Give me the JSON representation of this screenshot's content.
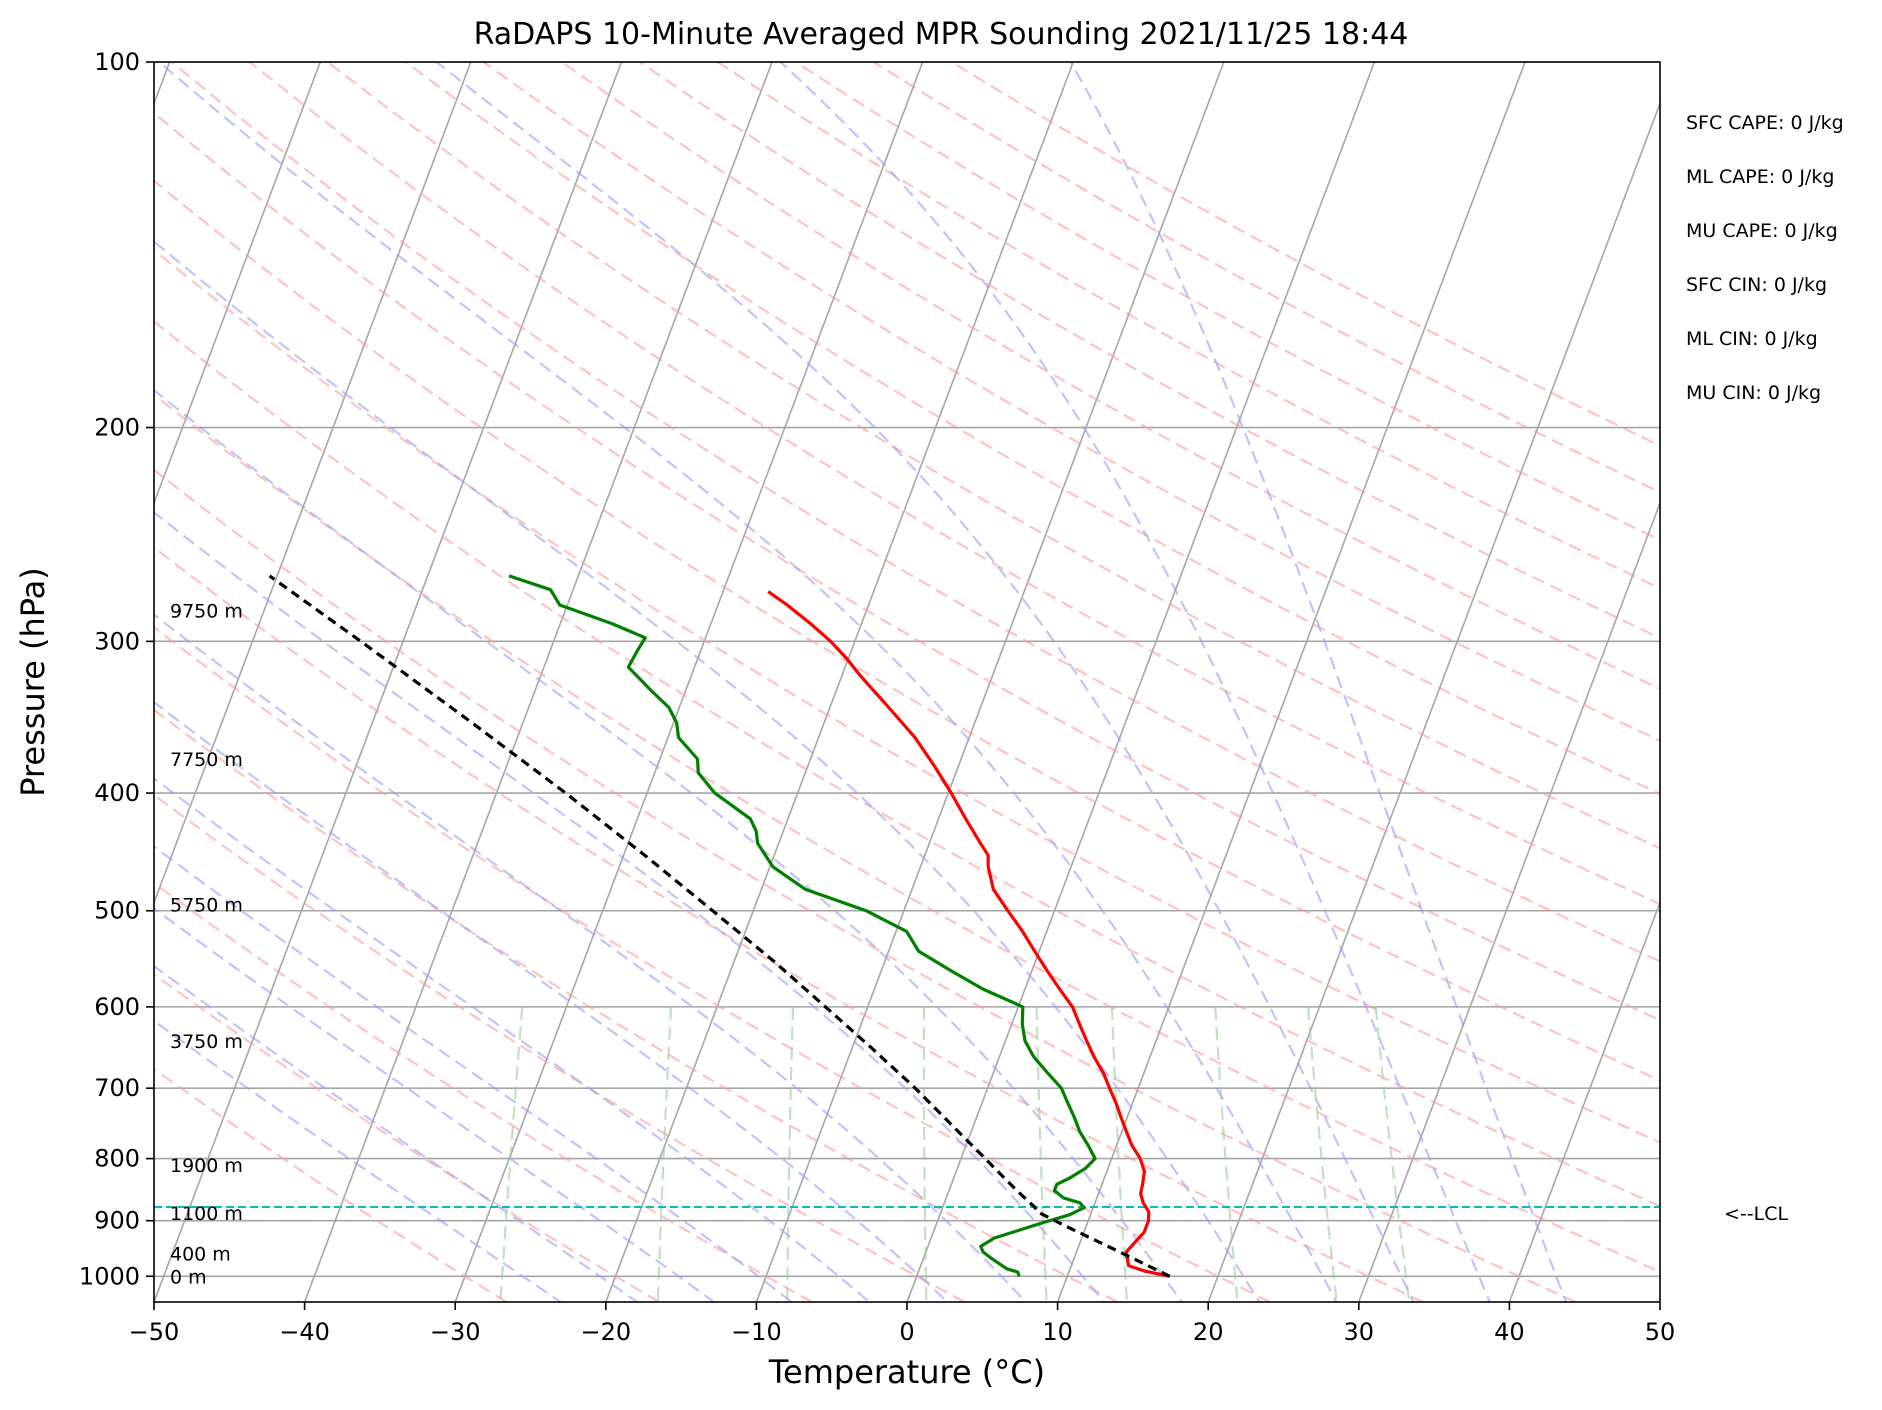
{
  "chart_data": {
    "type": "skew-t",
    "title": "RaDAPS 10-Minute Averaged MPR Sounding 2021/11/25 18:44",
    "xlabel": "Temperature (°C)",
    "ylabel": "Pressure (hPa)",
    "xlim": [
      -50,
      50
    ],
    "ylim": [
      1050,
      100
    ],
    "y_scale": "log",
    "grid": true,
    "x_ticks": [
      -50,
      -40,
      -30,
      -20,
      -10,
      0,
      10,
      20,
      30,
      40,
      50
    ],
    "x_tick_labels": [
      "−50",
      "−40",
      "−30",
      "−20",
      "−10",
      "0",
      "10",
      "20",
      "30",
      "40",
      "50"
    ],
    "y_ticks": [
      1000,
      900,
      800,
      700,
      600,
      500,
      400,
      300,
      200,
      100
    ],
    "y_tick_labels": [
      "1000",
      "900",
      "800",
      "700",
      "600",
      "500",
      "400",
      "300",
      "200",
      "100"
    ],
    "height_labels": [
      {
        "p": 1000,
        "text": "0 m"
      },
      {
        "p": 958,
        "text": "400 m"
      },
      {
        "p": 887,
        "text": "1100 m"
      },
      {
        "p": 810,
        "text": "1900 m"
      },
      {
        "p": 640,
        "text": "3750 m"
      },
      {
        "p": 494,
        "text": "5750 m"
      },
      {
        "p": 375,
        "text": "7750 m"
      },
      {
        "p": 283,
        "text": "9750 m"
      }
    ],
    "indices": [
      "SFC CAPE: 0 J/kg",
      "ML CAPE: 0 J/kg",
      "MU CAPE: 0 J/kg",
      "SFC CIN: 0 J/kg",
      "ML CIN: 0 J/kg",
      "MU CIN: 0 J/kg"
    ],
    "lcl": {
      "p": 877,
      "label": "<--LCL"
    },
    "colors": {
      "temperature": "#ff0000",
      "dewpoint": "#008000",
      "parcel": "#000000",
      "lcl": "#00bfbf",
      "dry_adiabats": "#ff9999",
      "moist_adiabats": "#9999ff",
      "mixing_ratio": "#99cc99",
      "isotherms": "#a6a6a6",
      "isobars": "#a6a6a6"
    },
    "series": [
      {
        "id": "temperature",
        "points": [
          [
            1000,
            16.8
          ],
          [
            990,
            15.0
          ],
          [
            980,
            13.8
          ],
          [
            970,
            13.6
          ],
          [
            955,
            13.3
          ],
          [
            940,
            13.6
          ],
          [
            920,
            14.0
          ],
          [
            900,
            14.0
          ],
          [
            885,
            13.8
          ],
          [
            870,
            13.2
          ],
          [
            855,
            12.8
          ],
          [
            840,
            12.7
          ],
          [
            820,
            12.5
          ],
          [
            800,
            11.9
          ],
          [
            780,
            11.0
          ],
          [
            760,
            10.3
          ],
          [
            740,
            9.6
          ],
          [
            720,
            8.9
          ],
          [
            700,
            8.1
          ],
          [
            680,
            7.3
          ],
          [
            660,
            6.3
          ],
          [
            640,
            5.4
          ],
          [
            620,
            4.5
          ],
          [
            600,
            3.6
          ],
          [
            580,
            2.3
          ],
          [
            560,
            1.0
          ],
          [
            540,
            -0.3
          ],
          [
            520,
            -1.6
          ],
          [
            500,
            -3.1
          ],
          [
            480,
            -4.6
          ],
          [
            460,
            -5.5
          ],
          [
            450,
            -5.8
          ],
          [
            440,
            -6.6
          ],
          [
            420,
            -8.2
          ],
          [
            400,
            -9.8
          ],
          [
            380,
            -11.6
          ],
          [
            360,
            -13.6
          ],
          [
            340,
            -16.1
          ],
          [
            320,
            -18.8
          ],
          [
            310,
            -20.1
          ],
          [
            300,
            -21.6
          ],
          [
            290,
            -23.4
          ],
          [
            280,
            -25.4
          ],
          [
            273,
            -27.0
          ]
        ]
      },
      {
        "id": "dewpoint",
        "points": [
          [
            1000,
            6.8
          ],
          [
            992,
            6.6
          ],
          [
            986,
            5.8
          ],
          [
            968,
            4.6
          ],
          [
            955,
            3.8
          ],
          [
            945,
            3.5
          ],
          [
            930,
            4.2
          ],
          [
            915,
            5.8
          ],
          [
            902,
            7.2
          ],
          [
            890,
            8.6
          ],
          [
            878,
            9.4
          ],
          [
            870,
            9.0
          ],
          [
            862,
            7.8
          ],
          [
            850,
            7.0
          ],
          [
            840,
            7.0
          ],
          [
            830,
            7.7
          ],
          [
            815,
            8.5
          ],
          [
            800,
            8.9
          ],
          [
            780,
            8.1
          ],
          [
            760,
            7.2
          ],
          [
            740,
            6.5
          ],
          [
            720,
            5.7
          ],
          [
            700,
            4.9
          ],
          [
            680,
            3.6
          ],
          [
            660,
            2.3
          ],
          [
            640,
            1.3
          ],
          [
            620,
            0.7
          ],
          [
            600,
            0.3
          ],
          [
            580,
            -2.8
          ],
          [
            560,
            -5.4
          ],
          [
            540,
            -8.0
          ],
          [
            520,
            -9.3
          ],
          [
            500,
            -12.5
          ],
          [
            480,
            -17.1
          ],
          [
            460,
            -19.8
          ],
          [
            440,
            -21.4
          ],
          [
            430,
            -21.8
          ],
          [
            420,
            -22.5
          ],
          [
            400,
            -25.5
          ],
          [
            385,
            -27.1
          ],
          [
            375,
            -27.5
          ],
          [
            360,
            -29.3
          ],
          [
            350,
            -29.8
          ],
          [
            340,
            -30.7
          ],
          [
            330,
            -32.2
          ],
          [
            315,
            -34.4
          ],
          [
            305,
            -34.2
          ],
          [
            298,
            -34.0
          ],
          [
            290,
            -36.6
          ],
          [
            280,
            -40.5
          ],
          [
            272,
            -41.5
          ],
          [
            265,
            -44.6
          ]
        ]
      },
      {
        "id": "parcel",
        "points": [
          [
            1000,
            16.8
          ],
          [
            970,
            14.2
          ],
          [
            940,
            11.5
          ],
          [
            910,
            8.7
          ],
          [
            885,
            6.4
          ],
          [
            877,
            6.1
          ],
          [
            850,
            4.5
          ],
          [
            800,
            1.6
          ],
          [
            750,
            -1.5
          ],
          [
            700,
            -4.8
          ],
          [
            650,
            -8.6
          ],
          [
            600,
            -12.8
          ],
          [
            550,
            -17.4
          ],
          [
            500,
            -22.7
          ],
          [
            450,
            -28.6
          ],
          [
            400,
            -35.4
          ],
          [
            350,
            -43.4
          ],
          [
            300,
            -52.8
          ],
          [
            265,
            -60.5
          ]
        ]
      }
    ]
  }
}
